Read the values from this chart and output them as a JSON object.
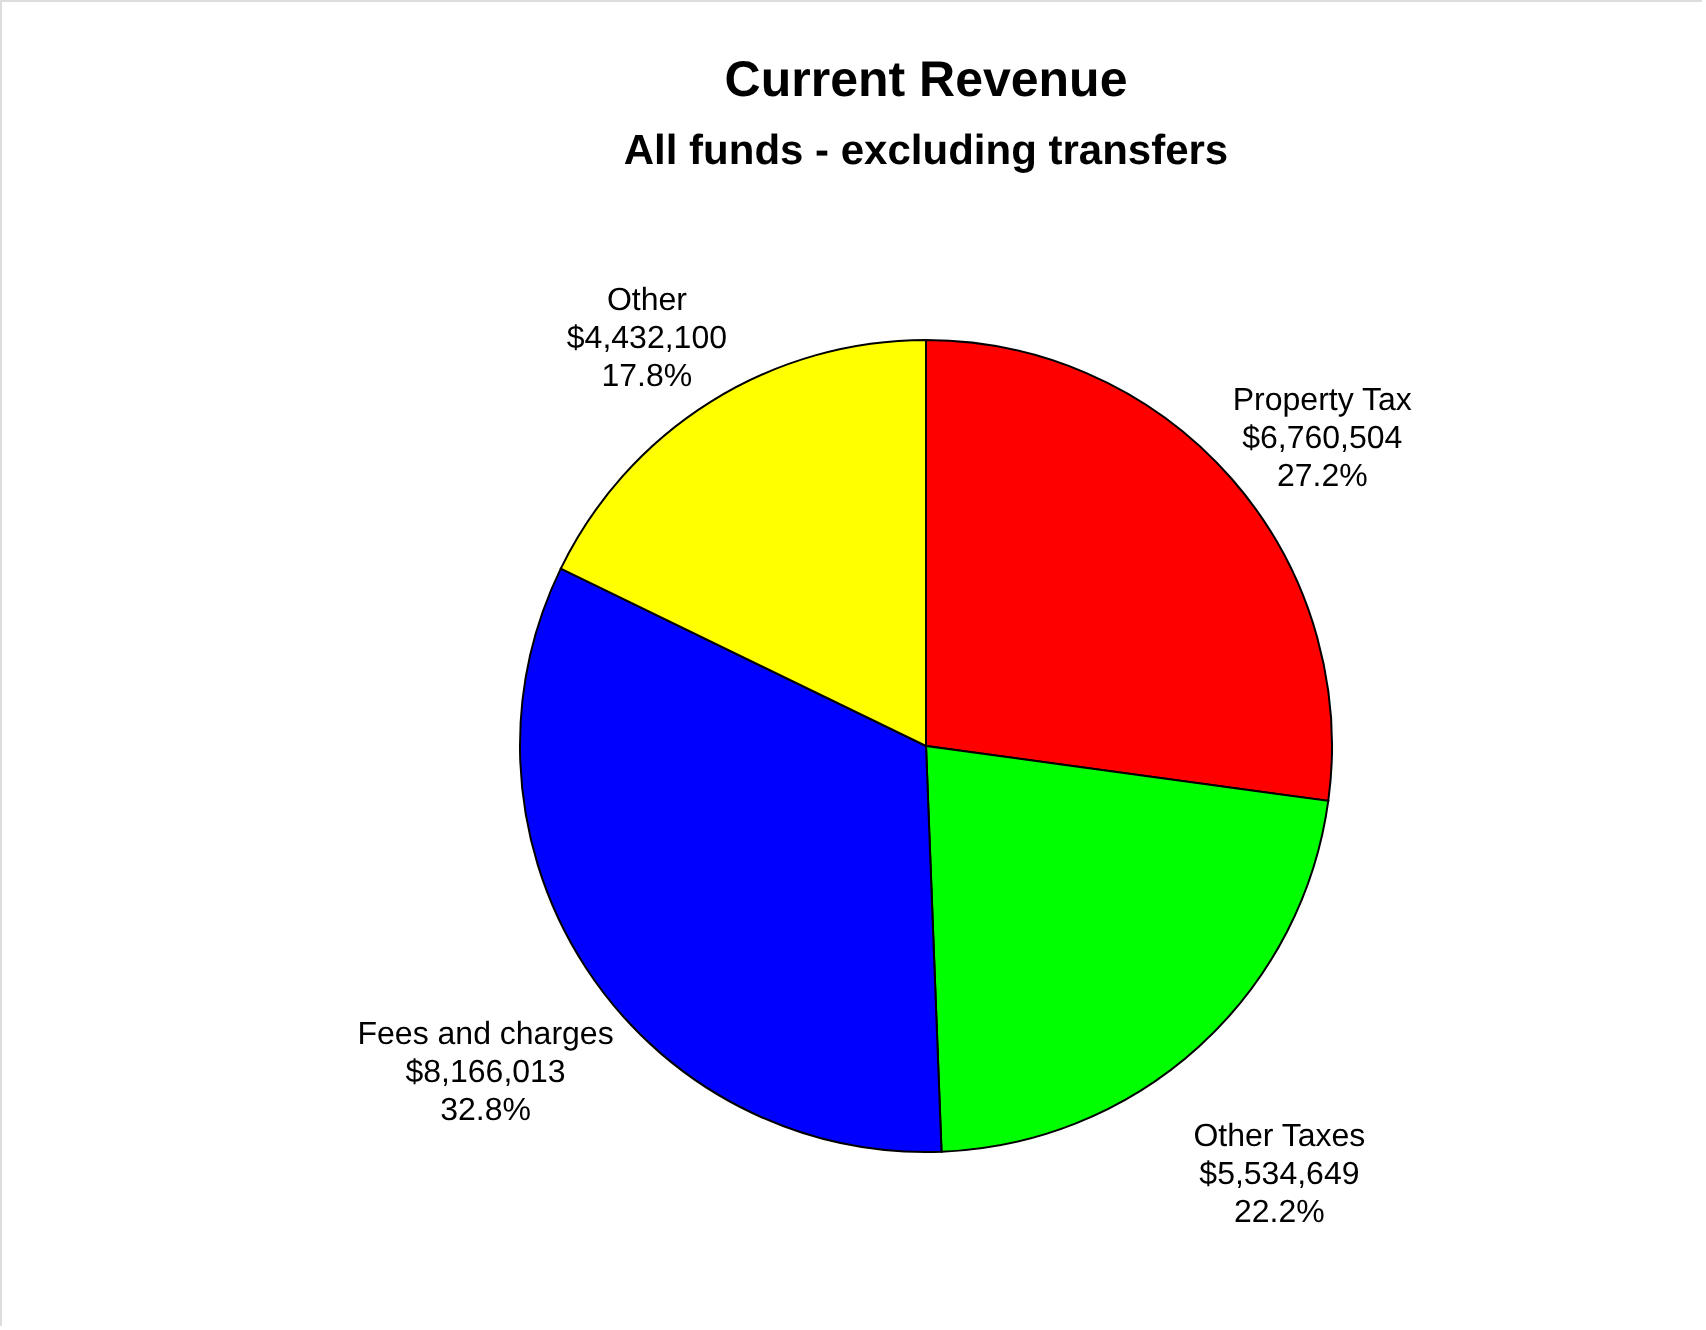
{
  "chart_data": {
    "type": "pie",
    "title": "Current Revenue",
    "subtitle": "All funds - excluding transfers",
    "categories": [
      "Property Tax",
      "Other Taxes",
      "Fees and charges",
      "Other"
    ],
    "values": [
      6760504,
      5534649,
      8166013,
      4432100
    ],
    "colors": [
      "#ff0000",
      "#00ff00",
      "#0000ff",
      "#ffff00"
    ],
    "value_labels": [
      "$6,760,504\n27.2%",
      "$5,534,649\n22.2%",
      "$8,166,013\n32.8%",
      "$4,432,100\n17.8%"
    ]
  }
}
